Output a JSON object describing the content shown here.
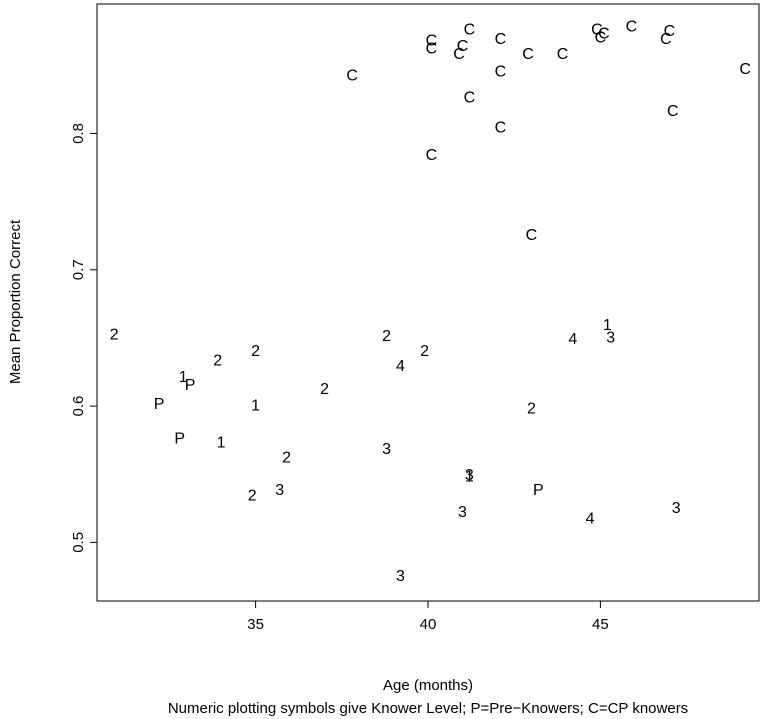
{
  "chart_data": {
    "type": "scatter",
    "title": "",
    "xlabel": "Age (months)",
    "xlabel_note": "Numeric plotting symbols give Knower Level; P=Pre−Knowers; C=CP knowers",
    "ylabel": "Mean Proportion Correct",
    "xlim": [
      30.4,
      49.6
    ],
    "ylim": [
      0.457,
      0.895
    ],
    "xticks": [
      35,
      40,
      45
    ],
    "yticks": [
      0.5,
      0.6,
      0.7,
      0.8
    ],
    "xtick_labels": [
      "35",
      "40",
      "45"
    ],
    "ytick_labels": [
      "0.5",
      "0.6",
      "0.7",
      "0.8"
    ],
    "grid": false,
    "legend": "none",
    "points": [
      {
        "x": 30.9,
        "y": 0.652,
        "label": "2"
      },
      {
        "x": 32.2,
        "y": 0.601,
        "label": "P"
      },
      {
        "x": 32.8,
        "y": 0.576,
        "label": "P"
      },
      {
        "x": 32.9,
        "y": 0.621,
        "label": "1"
      },
      {
        "x": 33.1,
        "y": 0.615,
        "label": "P"
      },
      {
        "x": 33.9,
        "y": 0.633,
        "label": "2"
      },
      {
        "x": 34.0,
        "y": 0.573,
        "label": "1"
      },
      {
        "x": 35.0,
        "y": 0.64,
        "label": "2"
      },
      {
        "x": 35.0,
        "y": 0.6,
        "label": "1"
      },
      {
        "x": 34.9,
        "y": 0.534,
        "label": "2"
      },
      {
        "x": 35.7,
        "y": 0.538,
        "label": "3"
      },
      {
        "x": 35.9,
        "y": 0.562,
        "label": "2"
      },
      {
        "x": 37.0,
        "y": 0.612,
        "label": "2"
      },
      {
        "x": 37.8,
        "y": 0.842,
        "label": "C"
      },
      {
        "x": 38.8,
        "y": 0.651,
        "label": "2"
      },
      {
        "x": 38.8,
        "y": 0.568,
        "label": "3"
      },
      {
        "x": 39.2,
        "y": 0.629,
        "label": "4"
      },
      {
        "x": 39.2,
        "y": 0.475,
        "label": "3"
      },
      {
        "x": 39.9,
        "y": 0.64,
        "label": "2"
      },
      {
        "x": 40.1,
        "y": 0.784,
        "label": "C"
      },
      {
        "x": 40.1,
        "y": 0.862,
        "label": "C"
      },
      {
        "x": 40.1,
        "y": 0.868,
        "label": "C"
      },
      {
        "x": 40.9,
        "y": 0.858,
        "label": "C"
      },
      {
        "x": 41.0,
        "y": 0.864,
        "label": "C"
      },
      {
        "x": 41.2,
        "y": 0.876,
        "label": "C"
      },
      {
        "x": 41.2,
        "y": 0.826,
        "label": "C"
      },
      {
        "x": 41.2,
        "y": 0.549,
        "label": "3"
      },
      {
        "x": 41.2,
        "y": 0.548,
        "label": "1"
      },
      {
        "x": 41.0,
        "y": 0.522,
        "label": "3"
      },
      {
        "x": 42.1,
        "y": 0.869,
        "label": "C"
      },
      {
        "x": 42.1,
        "y": 0.845,
        "label": "C"
      },
      {
        "x": 42.1,
        "y": 0.804,
        "label": "C"
      },
      {
        "x": 42.9,
        "y": 0.858,
        "label": "C"
      },
      {
        "x": 43.0,
        "y": 0.725,
        "label": "C"
      },
      {
        "x": 43.0,
        "y": 0.598,
        "label": "2"
      },
      {
        "x": 43.2,
        "y": 0.538,
        "label": "P"
      },
      {
        "x": 43.9,
        "y": 0.858,
        "label": "C"
      },
      {
        "x": 44.2,
        "y": 0.649,
        "label": "4"
      },
      {
        "x": 44.7,
        "y": 0.517,
        "label": "4"
      },
      {
        "x": 44.9,
        "y": 0.876,
        "label": "C"
      },
      {
        "x": 45.0,
        "y": 0.87,
        "label": "C"
      },
      {
        "x": 45.1,
        "y": 0.873,
        "label": "C"
      },
      {
        "x": 45.2,
        "y": 0.659,
        "label": "1"
      },
      {
        "x": 45.3,
        "y": 0.65,
        "label": "3"
      },
      {
        "x": 45.9,
        "y": 0.878,
        "label": "C"
      },
      {
        "x": 46.9,
        "y": 0.869,
        "label": "C"
      },
      {
        "x": 47.0,
        "y": 0.875,
        "label": "C"
      },
      {
        "x": 47.1,
        "y": 0.816,
        "label": "C"
      },
      {
        "x": 47.2,
        "y": 0.525,
        "label": "3"
      },
      {
        "x": 49.2,
        "y": 0.847,
        "label": "C"
      }
    ]
  }
}
